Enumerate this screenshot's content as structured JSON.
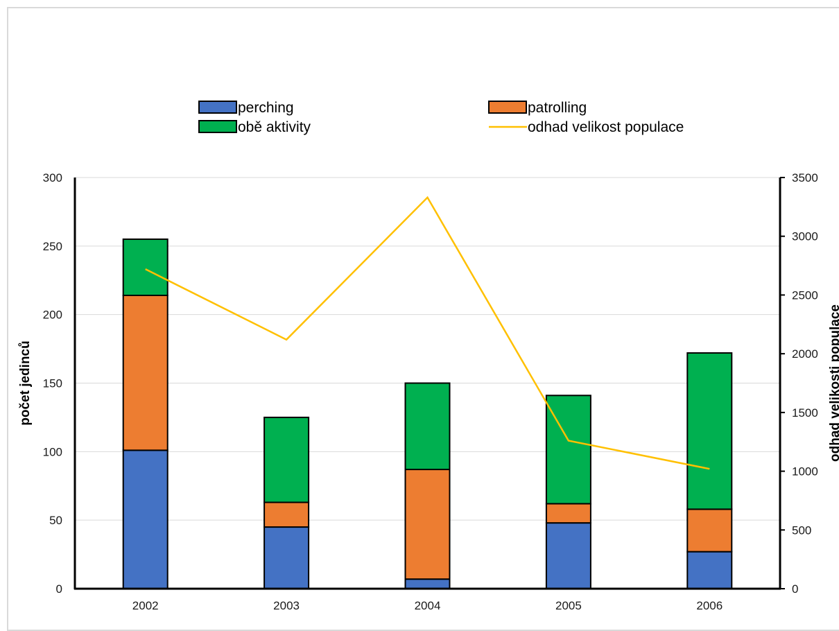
{
  "chart_data": {
    "type": "bar",
    "stacked": true,
    "categories": [
      "2002",
      "2003",
      "2004",
      "2005",
      "2006"
    ],
    "series": [
      {
        "name": "perching",
        "type": "bar",
        "axis": "left",
        "color": "#4472c4",
        "values": [
          101,
          45,
          7,
          48,
          27
        ]
      },
      {
        "name": "patrolling",
        "type": "bar",
        "axis": "left",
        "color": "#ed7d31",
        "values": [
          113,
          18,
          80,
          14,
          31
        ]
      },
      {
        "name": "obě aktivity",
        "type": "bar",
        "axis": "left",
        "color": "#00b050",
        "values": [
          41,
          62,
          63,
          79,
          114
        ]
      },
      {
        "name": "odhad velikost populace",
        "type": "line",
        "axis": "right",
        "color": "#ffc000",
        "values": [
          2720,
          2120,
          3330,
          1260,
          1020
        ]
      }
    ],
    "ylabel": "počet jedinců",
    "ylabel_right": "odhad velikosti populace",
    "ylim": [
      0,
      300
    ],
    "ylim_right": [
      0,
      3500
    ],
    "yticks": [
      "0",
      "50",
      "100",
      "150",
      "200",
      "250",
      "300"
    ],
    "yticks_right": [
      "0",
      "500",
      "1000",
      "1500",
      "2000",
      "2500",
      "3000",
      "3500"
    ],
    "grid": true,
    "legend_position": "top"
  }
}
